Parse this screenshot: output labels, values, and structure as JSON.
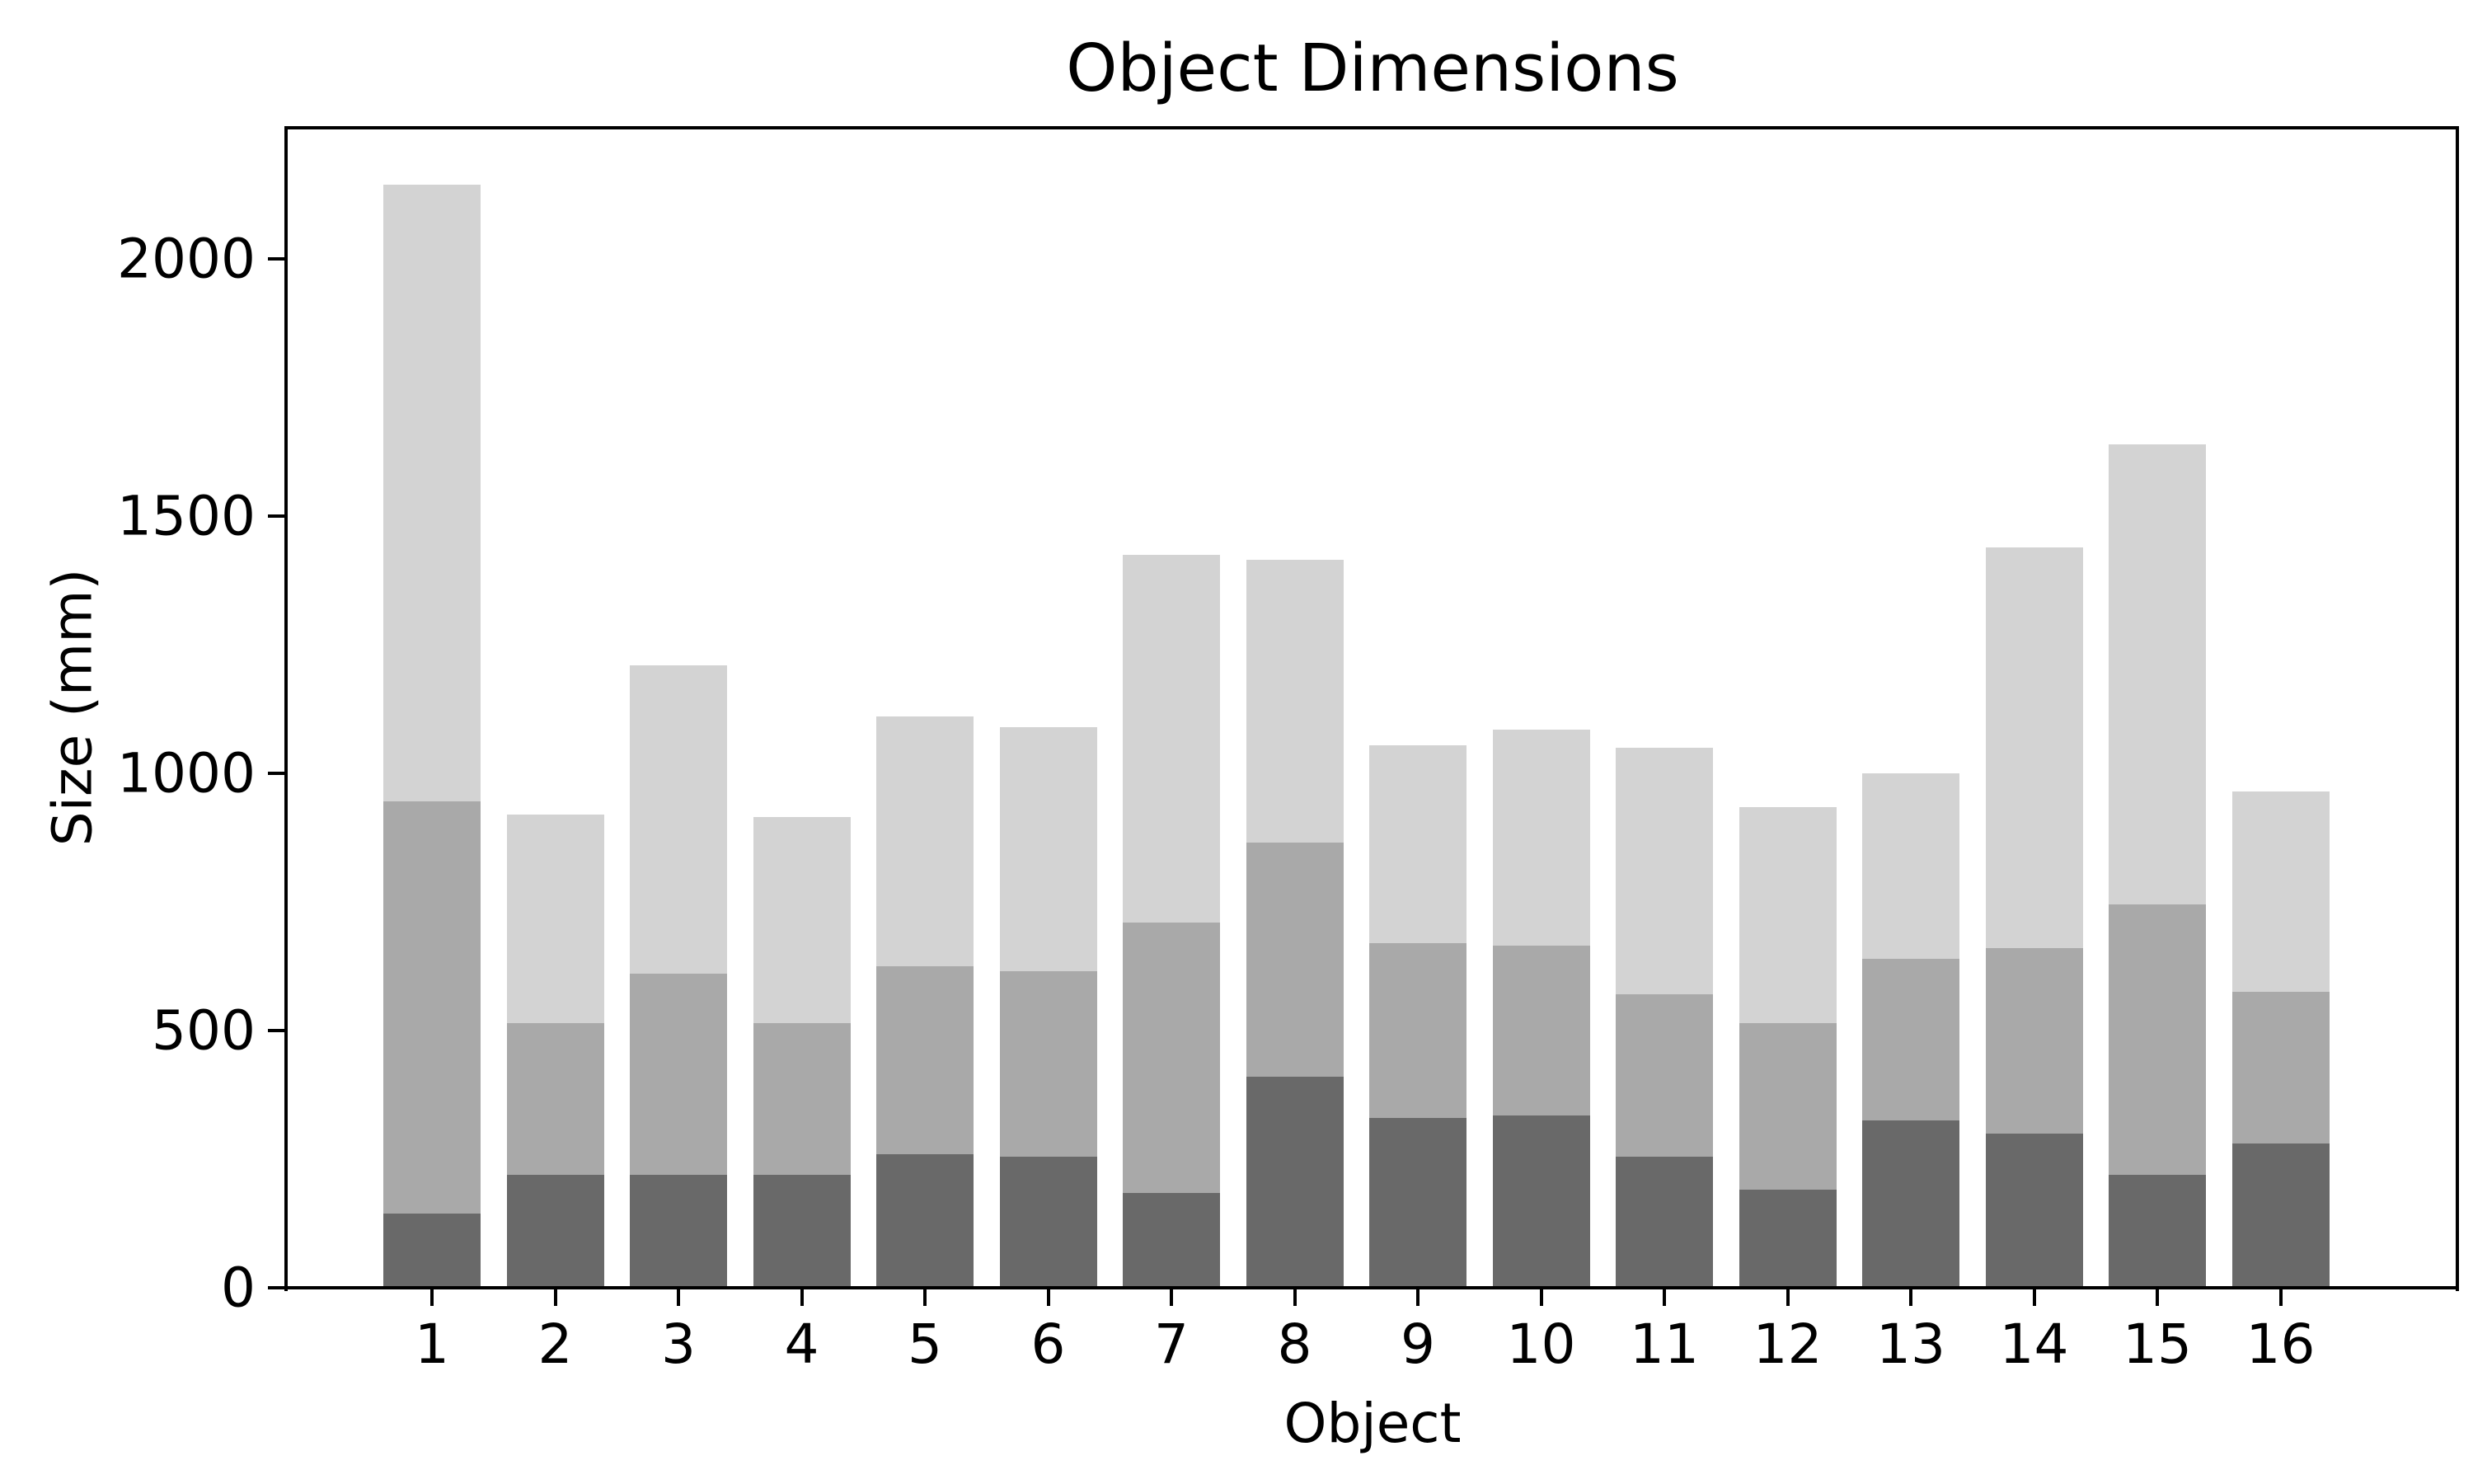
{
  "figure": {
    "title": "Object Dimensions",
    "xlabel": "Object",
    "ylabel": "Size (mm)"
  },
  "chart_data": {
    "type": "bar",
    "stacked": true,
    "title": "Object Dimensions",
    "xlabel": "Object",
    "ylabel": "Size (mm)",
    "categories": [
      "1",
      "2",
      "3",
      "4",
      "5",
      "6",
      "7",
      "8",
      "9",
      "10",
      "11",
      "12",
      "13",
      "14",
      "15",
      "16"
    ],
    "series": [
      {
        "name": "bottom-segment-dimgray",
        "color": "#696969",
        "values": [
          145,
          220,
          220,
          220,
          260,
          255,
          185,
          410,
          330,
          335,
          255,
          190,
          325,
          300,
          220,
          280
        ]
      },
      {
        "name": "middle-segment-darkgray",
        "color": "#a9a9a9",
        "values": [
          800,
          295,
          390,
          295,
          365,
          360,
          525,
          455,
          340,
          330,
          315,
          325,
          315,
          360,
          525,
          295
        ]
      },
      {
        "name": "top-segment-lightgray",
        "color": "#d3d3d3",
        "values": [
          1200,
          405,
          600,
          400,
          485,
          475,
          715,
          550,
          385,
          420,
          480,
          420,
          360,
          780,
          895,
          390
        ]
      }
    ],
    "stacked_totals": [
      2145,
      920,
      1210,
      915,
      1110,
      1090,
      1425,
      1415,
      1055,
      1085,
      1050,
      935,
      1000,
      1440,
      1640,
      965
    ],
    "ylim": [
      0,
      2255
    ],
    "yticks": [
      0,
      500,
      1000,
      1500,
      2000
    ],
    "grid": false,
    "legend": "none",
    "background_color": "#ffffff",
    "axis_color": "#000000"
  }
}
